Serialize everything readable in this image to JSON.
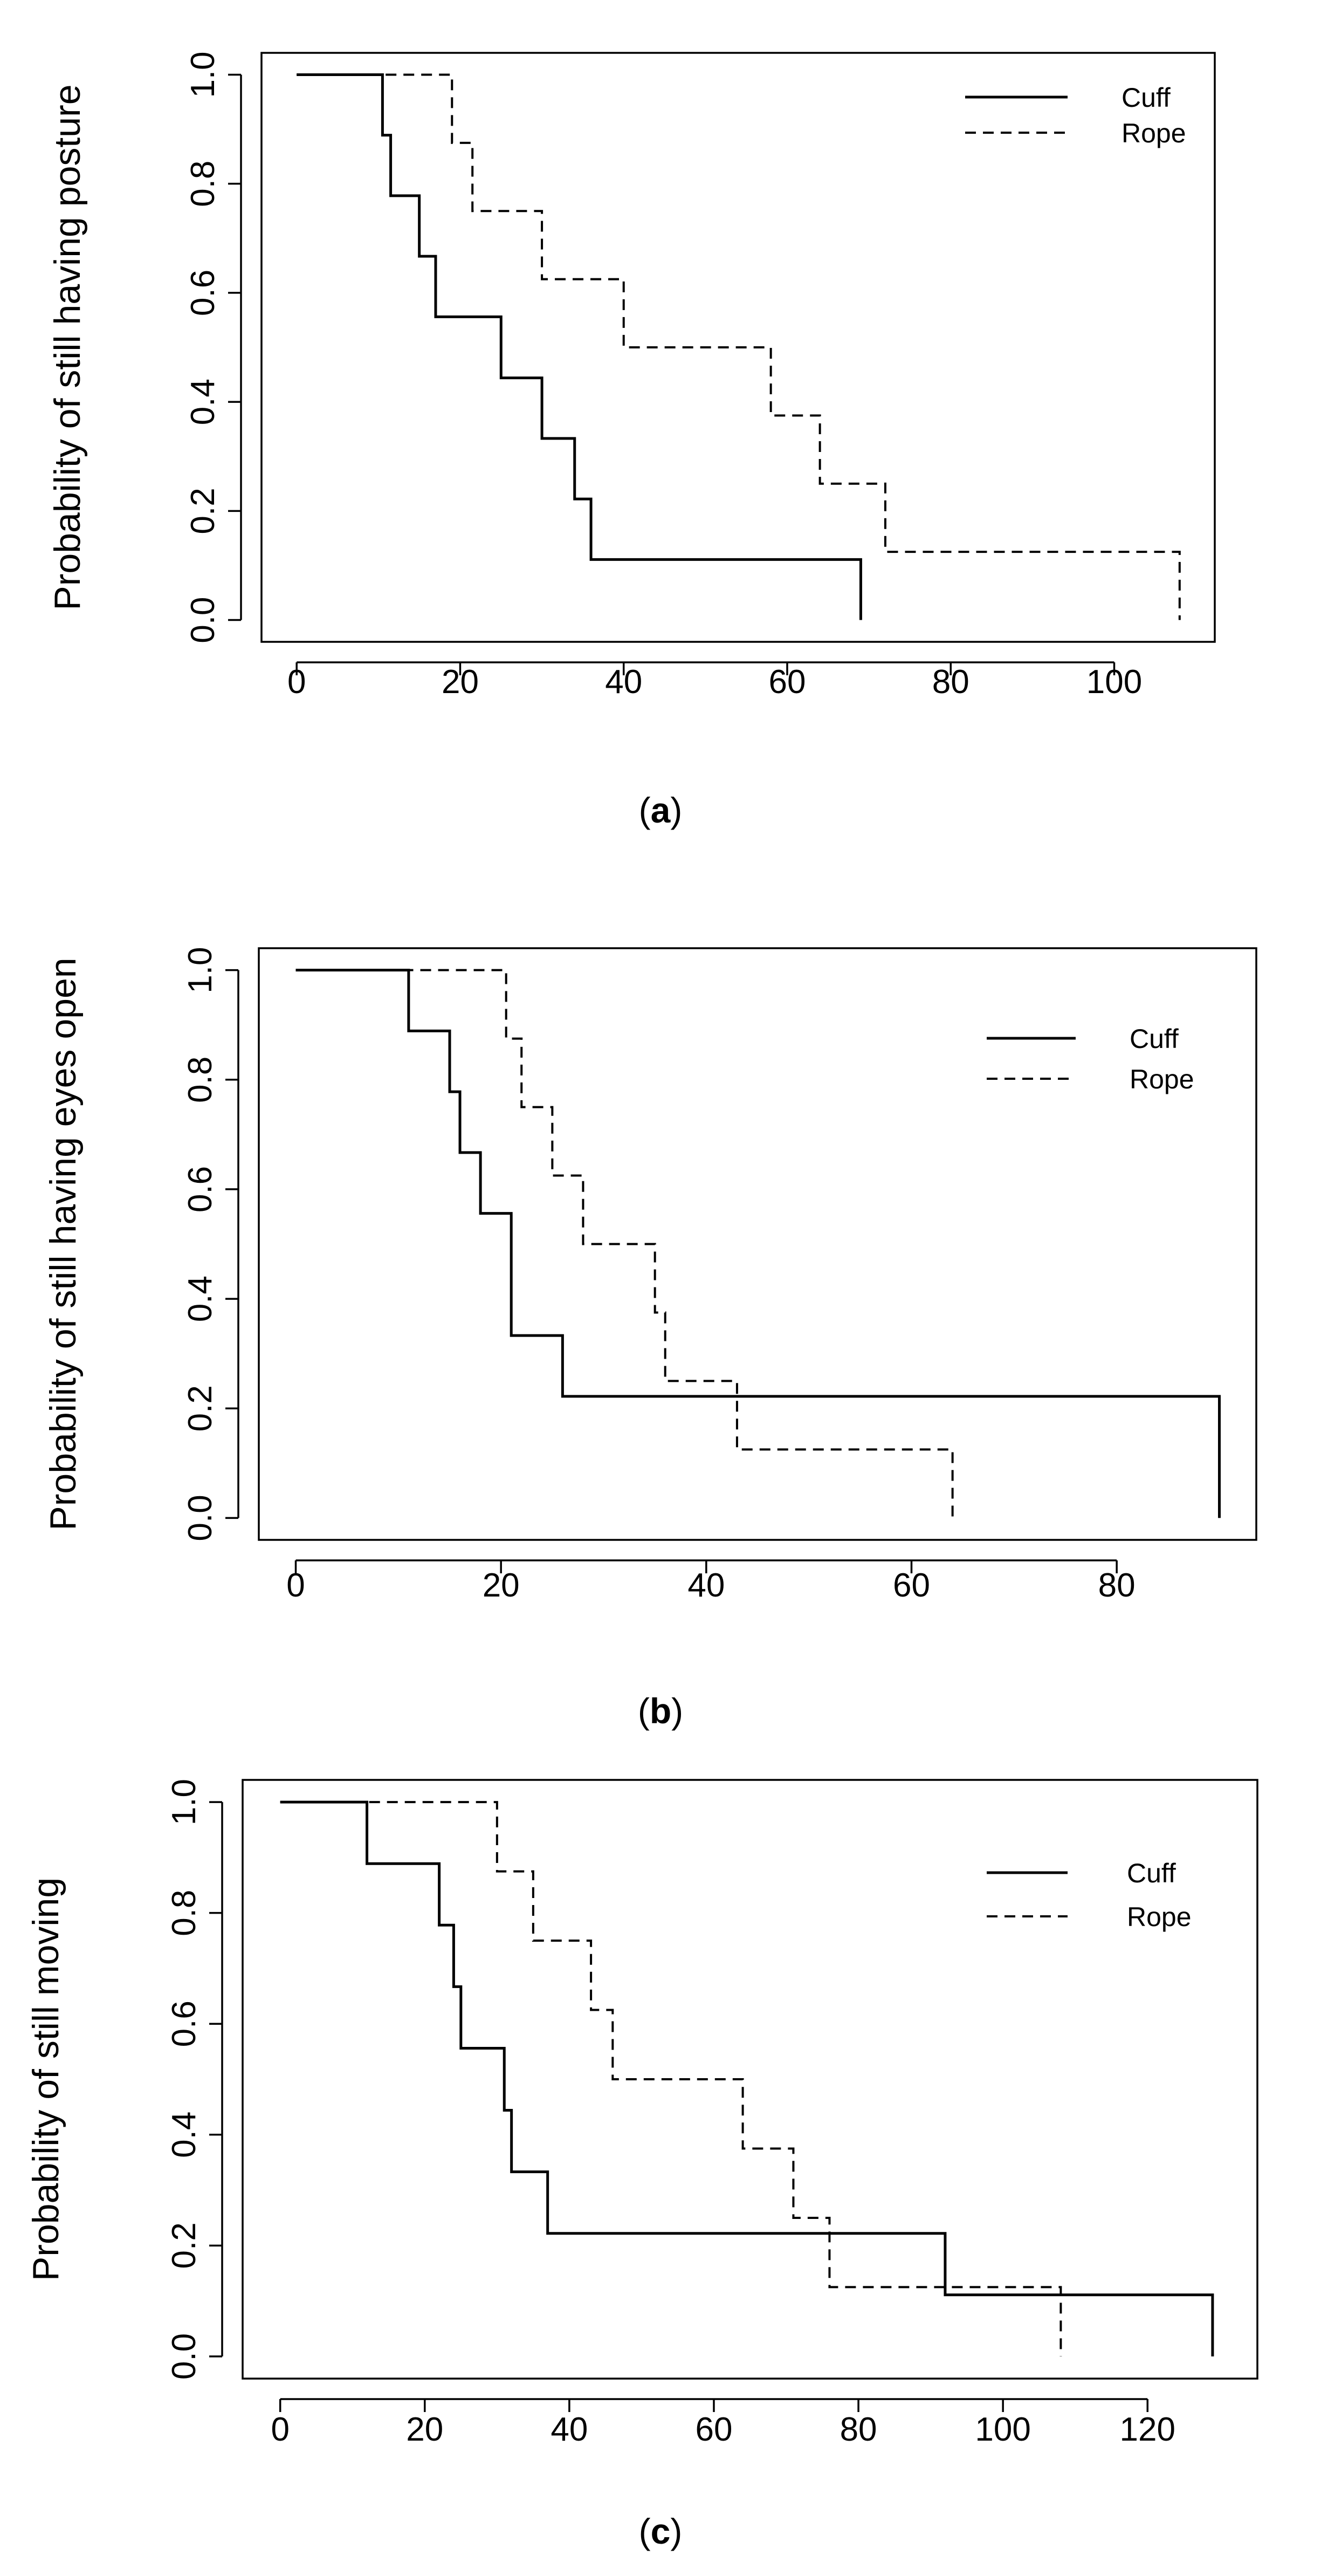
{
  "figure": {
    "background": "#ffffff",
    "line_color": "#000000"
  },
  "chart_data": [
    {
      "type": "line",
      "step": true,
      "caption": {
        "open": "(",
        "letter": "a",
        "close": ")"
      },
      "title": "",
      "xlabel": "",
      "ylabel": "Probability of still having posture",
      "xlim": [
        -4.3,
        112.3
      ],
      "ylim": [
        -0.04,
        1.04
      ],
      "xticks": [
        0,
        20,
        40,
        60,
        80,
        100
      ],
      "xtick_labels": [
        "0",
        "20",
        "40",
        "60",
        "80",
        "100"
      ],
      "yticks": [
        0,
        0.2,
        0.4,
        0.6,
        0.8,
        1.0
      ],
      "ytick_labels": [
        "0.0",
        "0.2",
        "0.4",
        "0.6",
        "0.8",
        "1.0"
      ],
      "legend": {
        "position": "top-right"
      },
      "series": [
        {
          "name": "Cuff",
          "dash": "solid",
          "x": [
            0,
            10.5,
            11.5,
            15,
            17,
            25,
            30,
            34,
            36,
            69
          ],
          "y": [
            1.0,
            0.889,
            0.778,
            0.667,
            0.556,
            0.444,
            0.333,
            0.222,
            0.111,
            0.0
          ]
        },
        {
          "name": "Rope",
          "dash": "dashed",
          "x": [
            0,
            19,
            21.5,
            30,
            40,
            58,
            64,
            72,
            108
          ],
          "y": [
            1.0,
            0.875,
            0.75,
            0.625,
            0.5,
            0.375,
            0.25,
            0.125,
            0.0
          ]
        }
      ]
    },
    {
      "type": "line",
      "step": true,
      "caption": {
        "open": "(",
        "letter": "b",
        "close": ")"
      },
      "title": "",
      "xlabel": "",
      "ylabel": "Probability of still having eyes open",
      "xlim": [
        -3.6,
        93.6
      ],
      "ylim": [
        -0.04,
        1.04
      ],
      "xticks": [
        0,
        20,
        40,
        60,
        80
      ],
      "xtick_labels": [
        "0",
        "20",
        "40",
        "60",
        "80"
      ],
      "yticks": [
        0,
        0.2,
        0.4,
        0.6,
        0.8,
        1.0
      ],
      "ytick_labels": [
        "0.0",
        "0.2",
        "0.4",
        "0.6",
        "0.8",
        "1.0"
      ],
      "legend": {
        "position": "top-right"
      },
      "series": [
        {
          "name": "Cuff",
          "dash": "solid",
          "x": [
            0,
            11,
            15,
            16,
            18,
            21,
            26,
            90
          ],
          "y": [
            1.0,
            0.889,
            0.778,
            0.667,
            0.556,
            0.333,
            0.222,
            0.0
          ]
        },
        {
          "name": "Rope",
          "dash": "dashed",
          "x": [
            0,
            20.5,
            22,
            25,
            28,
            35,
            36,
            43,
            64
          ],
          "y": [
            1.0,
            0.875,
            0.75,
            0.625,
            0.5,
            0.375,
            0.25,
            0.125,
            0.0
          ]
        }
      ]
    },
    {
      "type": "line",
      "step": true,
      "caption": {
        "open": "(",
        "letter": "c",
        "close": ")"
      },
      "title": "",
      "xlabel": "",
      "ylabel": "Probability of still moving",
      "xlim": [
        -5.2,
        135.2
      ],
      "ylim": [
        -0.04,
        1.04
      ],
      "xticks": [
        0,
        20,
        40,
        60,
        80,
        100,
        120
      ],
      "xtick_labels": [
        "0",
        "20",
        "40",
        "60",
        "80",
        "100",
        "120"
      ],
      "yticks": [
        0,
        0.2,
        0.4,
        0.6,
        0.8,
        1.0
      ],
      "ytick_labels": [
        "0.0",
        "0.2",
        "0.4",
        "0.6",
        "0.8",
        "1.0"
      ],
      "legend": {
        "position": "top-right"
      },
      "series": [
        {
          "name": "Cuff",
          "dash": "solid",
          "x": [
            0,
            12,
            22,
            24,
            25,
            31,
            32,
            37,
            92,
            129
          ],
          "y": [
            1.0,
            0.889,
            0.778,
            0.667,
            0.556,
            0.444,
            0.333,
            0.222,
            0.111,
            0.0
          ]
        },
        {
          "name": "Rope",
          "dash": "dashed",
          "x": [
            0,
            30,
            35,
            43,
            46,
            64,
            71,
            76,
            108
          ],
          "y": [
            1.0,
            0.875,
            0.75,
            0.625,
            0.5,
            0.375,
            0.25,
            0.125,
            0.0
          ]
        }
      ]
    }
  ]
}
